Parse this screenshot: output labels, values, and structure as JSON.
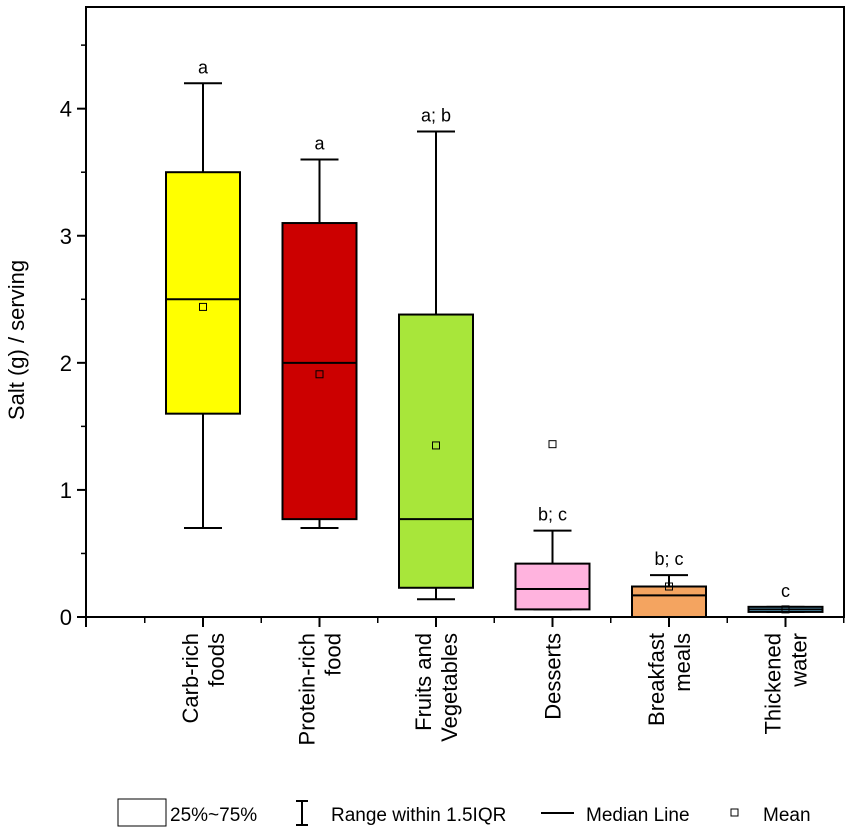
{
  "chart_data": {
    "type": "box",
    "ylabel": "Salt (g) / serving",
    "xlabel": "",
    "ylim": [
      0,
      4.8
    ],
    "yticks": [
      0,
      1,
      2,
      3,
      4
    ],
    "grid": false,
    "legend_position": "bottom",
    "categories": [
      {
        "name": "Carb-rich foods",
        "label_lines": [
          "Carb-rich",
          "foods"
        ],
        "q1": 1.6,
        "median": 2.5,
        "q3": 3.5,
        "whisker_low": 0.7,
        "whisker_high": 4.2,
        "mean": 2.44,
        "letters": "a",
        "color": "#ffff00"
      },
      {
        "name": "Protein-rich food",
        "label_lines": [
          "Protein-rich",
          "food"
        ],
        "q1": 0.77,
        "median": 2.0,
        "q3": 3.1,
        "whisker_low": 0.7,
        "whisker_high": 3.6,
        "mean": 1.91,
        "letters": "a",
        "color": "#cc0000"
      },
      {
        "name": "Fruits and Vegetables",
        "label_lines": [
          "Fruits and",
          "Vegetables"
        ],
        "q1": 0.23,
        "median": 0.77,
        "q3": 2.38,
        "whisker_low": 0.14,
        "whisker_high": 3.82,
        "mean": 1.35,
        "letters": "a; b",
        "color": "#a8e63a"
      },
      {
        "name": "Desserts",
        "label_lines": [
          "Desserts"
        ],
        "q1": 0.06,
        "median": 0.22,
        "q3": 0.42,
        "whisker_low": 0.06,
        "whisker_high": 0.68,
        "mean": 1.36,
        "letters": "b; c",
        "color": "#ffb3de"
      },
      {
        "name": "Breakfast meals",
        "label_lines": [
          "Breakfast",
          "meals"
        ],
        "q1": 0.0,
        "median": 0.17,
        "q3": 0.24,
        "whisker_low": 0.0,
        "whisker_high": 0.33,
        "mean": 0.24,
        "letters": "b; c",
        "color": "#f4a460"
      },
      {
        "name": "Thickened water",
        "label_lines": [
          "Thickened",
          "water"
        ],
        "q1": 0.04,
        "median": 0.06,
        "q3": 0.08,
        "whisker_low": 0.04,
        "whisker_high": 0.08,
        "mean": 0.06,
        "letters": "c",
        "color": "#6ec6f0"
      }
    ],
    "legend": {
      "box_label": "25%~75%",
      "range_label": "Range within 1.5IQR",
      "median_label": "Median Line",
      "mean_label": "Mean"
    }
  }
}
